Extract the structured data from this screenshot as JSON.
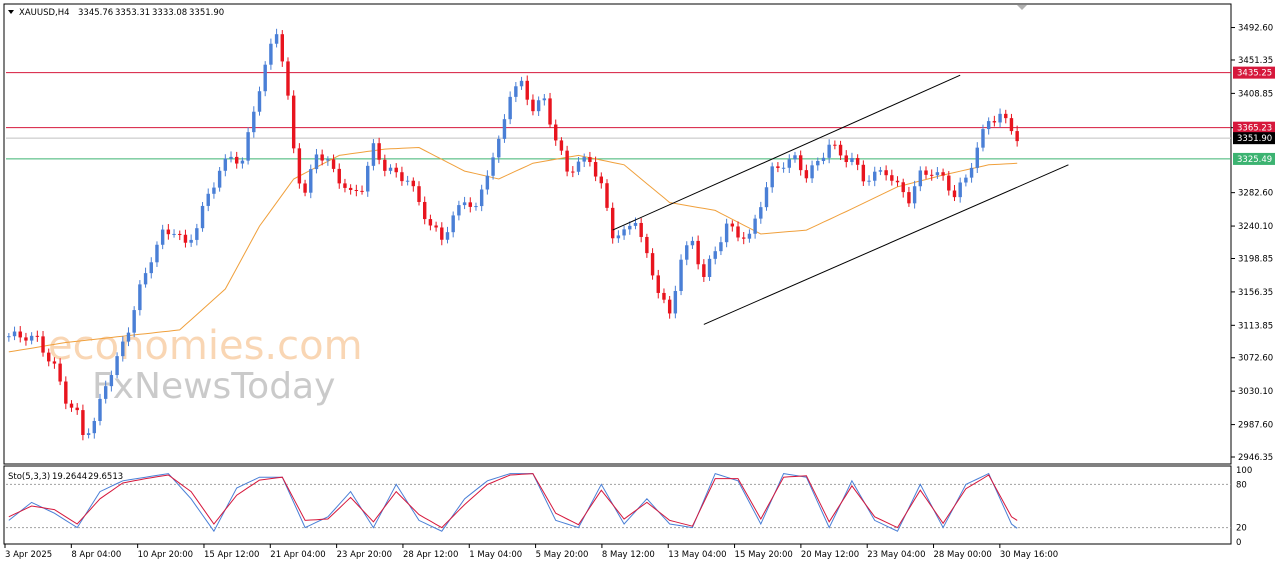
{
  "chart_data": {
    "type": "candlestick",
    "symbol_header": "XAUUSD,H4",
    "ohlc_header": [
      "3345.76",
      "3353.31",
      "3333.08",
      "3351.90"
    ],
    "y_ticks": [
      "3492.60",
      "3451.35",
      "3408.85",
      "3365.23",
      "3282.60",
      "3240.10",
      "3198.85",
      "3156.35",
      "3113.85",
      "3072.60",
      "3030.10",
      "2987.60",
      "2946.35"
    ],
    "price_range": [
      2940,
      3520
    ],
    "horizontal_levels": [
      {
        "label": "3435.25",
        "value": 3435.25,
        "color": "#d6183c",
        "role": "resistance"
      },
      {
        "label": "3365.23",
        "value": 3365.23,
        "color": "#d6183c",
        "role": "resistance"
      },
      {
        "label": "3351.90",
        "value": 3351.9,
        "color": "#000000",
        "role": "current-price"
      },
      {
        "label": "3325.49",
        "value": 3325.49,
        "color": "#3cb371",
        "role": "support"
      }
    ],
    "x_labels": [
      "3 Apr 2025",
      "8 Apr 04:00",
      "10 Apr 20:00",
      "15 Apr 12:00",
      "21 Apr 04:00",
      "23 Apr 20:00",
      "28 Apr 12:00",
      "1 May 04:00",
      "5 May 20:00",
      "8 May 12:00",
      "13 May 04:00",
      "15 May 20:00",
      "20 May 12:00",
      "23 May 04:00",
      "28 May 00:00",
      "30 May 16:00"
    ],
    "close_path": [
      [
        0,
        3100
      ],
      [
        3,
        3100
      ],
      [
        5,
        3095
      ],
      [
        8,
        3060
      ],
      [
        10,
        3020
      ],
      [
        12,
        3000
      ],
      [
        13,
        2975
      ],
      [
        15,
        2990
      ],
      [
        17,
        3040
      ],
      [
        19,
        3070
      ],
      [
        21,
        3110
      ],
      [
        23,
        3160
      ],
      [
        25,
        3200
      ],
      [
        27,
        3230
      ],
      [
        29,
        3235
      ],
      [
        31,
        3215
      ],
      [
        33,
        3240
      ],
      [
        35,
        3280
      ],
      [
        37,
        3310
      ],
      [
        39,
        3330
      ],
      [
        41,
        3320
      ],
      [
        43,
        3390
      ],
      [
        45,
        3440
      ],
      [
        46,
        3470
      ],
      [
        47,
        3490
      ],
      [
        48,
        3450
      ],
      [
        49,
        3400
      ],
      [
        50,
        3340
      ],
      [
        51,
        3300
      ],
      [
        52,
        3280
      ],
      [
        54,
        3335
      ],
      [
        56,
        3320
      ],
      [
        58,
        3300
      ],
      [
        60,
        3280
      ],
      [
        62,
        3290
      ],
      [
        64,
        3340
      ],
      [
        66,
        3315
      ],
      [
        68,
        3305
      ],
      [
        70,
        3300
      ],
      [
        72,
        3270
      ],
      [
        74,
        3240
      ],
      [
        76,
        3225
      ],
      [
        78,
        3250
      ],
      [
        80,
        3275
      ],
      [
        82,
        3260
      ],
      [
        84,
        3310
      ],
      [
        86,
        3345
      ],
      [
        88,
        3410
      ],
      [
        90,
        3420
      ],
      [
        92,
        3390
      ],
      [
        94,
        3400
      ],
      [
        96,
        3350
      ],
      [
        98,
        3310
      ],
      [
        100,
        3320
      ],
      [
        102,
        3325
      ],
      [
        104,
        3290
      ],
      [
        106,
        3230
      ],
      [
        108,
        3230
      ],
      [
        110,
        3250
      ],
      [
        112,
        3200
      ],
      [
        114,
        3160
      ],
      [
        116,
        3125
      ],
      [
        118,
        3200
      ],
      [
        120,
        3220
      ],
      [
        122,
        3175
      ],
      [
        124,
        3210
      ],
      [
        126,
        3240
      ],
      [
        128,
        3230
      ],
      [
        130,
        3225
      ],
      [
        132,
        3270
      ],
      [
        134,
        3310
      ],
      [
        136,
        3320
      ],
      [
        138,
        3325
      ],
      [
        140,
        3305
      ],
      [
        142,
        3320
      ],
      [
        144,
        3345
      ],
      [
        146,
        3330
      ],
      [
        148,
        3325
      ],
      [
        150,
        3300
      ],
      [
        152,
        3305
      ],
      [
        154,
        3310
      ],
      [
        156,
        3290
      ],
      [
        158,
        3275
      ],
      [
        160,
        3305
      ],
      [
        162,
        3310
      ],
      [
        164,
        3300
      ],
      [
        166,
        3280
      ],
      [
        168,
        3300
      ],
      [
        170,
        3340
      ],
      [
        172,
        3375
      ],
      [
        174,
        3380
      ],
      [
        176,
        3365
      ],
      [
        177,
        3352
      ]
    ],
    "moving_average": [
      [
        0,
        3080
      ],
      [
        10,
        3092
      ],
      [
        20,
        3100
      ],
      [
        30,
        3108
      ],
      [
        38,
        3160
      ],
      [
        44,
        3240
      ],
      [
        50,
        3300
      ],
      [
        58,
        3330
      ],
      [
        66,
        3338
      ],
      [
        72,
        3340
      ],
      [
        80,
        3310
      ],
      [
        86,
        3300
      ],
      [
        92,
        3320
      ],
      [
        100,
        3330
      ],
      [
        108,
        3318
      ],
      [
        116,
        3270
      ],
      [
        124,
        3260
      ],
      [
        132,
        3230
      ],
      [
        140,
        3235
      ],
      [
        148,
        3262
      ],
      [
        156,
        3290
      ],
      [
        164,
        3305
      ],
      [
        172,
        3318
      ],
      [
        177,
        3320
      ]
    ],
    "channel": {
      "upper": [
        [
          106,
          3235
        ],
        [
          167,
          3432
        ]
      ],
      "lower": [
        [
          122,
          3115
        ],
        [
          186,
          3318
        ]
      ],
      "note": "ascending channel drawn on price"
    },
    "stochastic": {
      "label": "Sto(5,3,3)",
      "k_value": "19.2644",
      "d_value": "29.6513",
      "levels": [
        "100",
        "80",
        "20",
        "0"
      ],
      "range": [
        0,
        100
      ],
      "k_path": [
        [
          0,
          30
        ],
        [
          4,
          55
        ],
        [
          8,
          40
        ],
        [
          12,
          20
        ],
        [
          16,
          70
        ],
        [
          20,
          85
        ],
        [
          24,
          90
        ],
        [
          28,
          95
        ],
        [
          32,
          60
        ],
        [
          36,
          15
        ],
        [
          40,
          75
        ],
        [
          44,
          90
        ],
        [
          48,
          90
        ],
        [
          52,
          20
        ],
        [
          56,
          35
        ],
        [
          60,
          70
        ],
        [
          64,
          20
        ],
        [
          68,
          80
        ],
        [
          72,
          30
        ],
        [
          76,
          15
        ],
        [
          80,
          60
        ],
        [
          84,
          85
        ],
        [
          88,
          95
        ],
        [
          92,
          95
        ],
        [
          96,
          30
        ],
        [
          100,
          20
        ],
        [
          104,
          80
        ],
        [
          108,
          25
        ],
        [
          112,
          60
        ],
        [
          116,
          25
        ],
        [
          120,
          20
        ],
        [
          124,
          95
        ],
        [
          128,
          85
        ],
        [
          132,
          25
        ],
        [
          136,
          95
        ],
        [
          140,
          90
        ],
        [
          144,
          20
        ],
        [
          148,
          85
        ],
        [
          152,
          30
        ],
        [
          156,
          15
        ],
        [
          160,
          80
        ],
        [
          164,
          20
        ],
        [
          168,
          80
        ],
        [
          172,
          95
        ],
        [
          176,
          25
        ],
        [
          177,
          19
        ]
      ],
      "d_path": [
        [
          0,
          35
        ],
        [
          4,
          50
        ],
        [
          8,
          45
        ],
        [
          12,
          25
        ],
        [
          16,
          60
        ],
        [
          20,
          82
        ],
        [
          24,
          88
        ],
        [
          28,
          93
        ],
        [
          32,
          70
        ],
        [
          36,
          25
        ],
        [
          40,
          65
        ],
        [
          44,
          86
        ],
        [
          48,
          90
        ],
        [
          52,
          30
        ],
        [
          56,
          32
        ],
        [
          60,
          62
        ],
        [
          64,
          28
        ],
        [
          68,
          70
        ],
        [
          72,
          38
        ],
        [
          76,
          20
        ],
        [
          80,
          52
        ],
        [
          84,
          80
        ],
        [
          88,
          93
        ],
        [
          92,
          95
        ],
        [
          96,
          40
        ],
        [
          100,
          24
        ],
        [
          104,
          72
        ],
        [
          108,
          32
        ],
        [
          112,
          55
        ],
        [
          116,
          30
        ],
        [
          120,
          22
        ],
        [
          124,
          88
        ],
        [
          128,
          88
        ],
        [
          132,
          32
        ],
        [
          136,
          90
        ],
        [
          140,
          92
        ],
        [
          144,
          28
        ],
        [
          148,
          78
        ],
        [
          152,
          35
        ],
        [
          156,
          20
        ],
        [
          160,
          72
        ],
        [
          164,
          26
        ],
        [
          168,
          74
        ],
        [
          172,
          93
        ],
        [
          176,
          35
        ],
        [
          177,
          30
        ]
      ]
    },
    "colors": {
      "bull": "#4a7fd6",
      "bear": "#e8141e",
      "ma": "#f0a03c",
      "stoch_k": "#4a7fd6",
      "stoch_d": "#d6183c",
      "level_red": "#d6183c",
      "level_green": "#3cb371"
    }
  },
  "watermark": {
    "line1": "economies.com",
    "line2": "FxNewsToday"
  }
}
